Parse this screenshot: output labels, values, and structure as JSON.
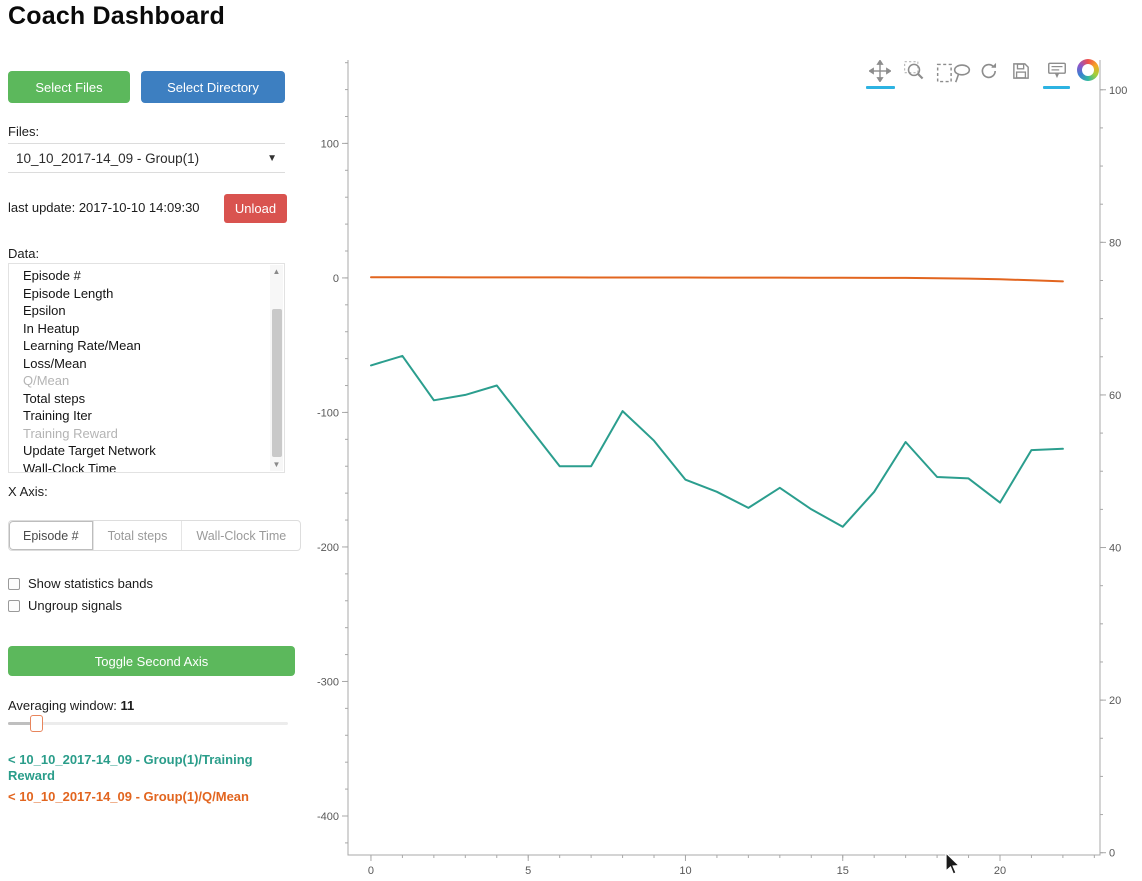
{
  "title": "Coach Dashboard",
  "sidebar": {
    "select_files_label": "Select Files",
    "select_directory_label": "Select Directory",
    "files_label": "Files:",
    "files_selected": "10_10_2017-14_09 - Group(1)",
    "last_update": "last update: 2017-10-10 14:09:30",
    "unload_label": "Unload",
    "data_label": "Data:",
    "data_items": [
      {
        "label": "Episode #",
        "dimmed": false
      },
      {
        "label": "Episode Length",
        "dimmed": false
      },
      {
        "label": "Epsilon",
        "dimmed": false
      },
      {
        "label": "In Heatup",
        "dimmed": false
      },
      {
        "label": "Learning Rate/Mean",
        "dimmed": false
      },
      {
        "label": "Loss/Mean",
        "dimmed": false
      },
      {
        "label": "Q/Mean",
        "dimmed": true
      },
      {
        "label": "Total steps",
        "dimmed": false
      },
      {
        "label": "Training Iter",
        "dimmed": false
      },
      {
        "label": "Training Reward",
        "dimmed": true
      },
      {
        "label": "Update Target Network",
        "dimmed": false
      },
      {
        "label": "Wall-Clock Time",
        "dimmed": false
      }
    ],
    "x_axis_label": "X Axis:",
    "x_axis_options": [
      "Episode #",
      "Total steps",
      "Wall-Clock Time"
    ],
    "x_axis_selected": "Episode #",
    "show_bands_label": "Show statistics bands",
    "ungroup_label": "Ungroup signals",
    "toggle_second_axis_label": "Toggle Second Axis",
    "averaging_label": "Averaging window:",
    "averaging_value": "11",
    "legend": [
      {
        "label": "< 10_10_2017-14_09 - Group(1)/Training Reward",
        "color": "#2a9d8a"
      },
      {
        "label": "< 10_10_2017-14_09 - Group(1)/Q/Mean",
        "color": "#e2651f"
      }
    ]
  },
  "toolbar": {
    "tools": [
      "pan",
      "box-zoom",
      "box-select",
      "lasso-select",
      "reset",
      "save",
      "hover",
      "bokeh-logo"
    ],
    "active_tools": [
      "pan",
      "hover"
    ],
    "active_color": "#2db3e2"
  },
  "chart_data": {
    "type": "line",
    "title": "",
    "grid": false,
    "legend_position": "sidebar",
    "x_ticks": [
      0,
      5,
      10,
      15,
      20
    ],
    "x_range": [
      -0.73,
      23.18
    ],
    "x_minor_step": 1,
    "left_axis": {
      "ticks": [
        100,
        0,
        -100,
        -200,
        -300,
        -400
      ],
      "range": [
        -429,
        162
      ],
      "minor_step": 20
    },
    "right_axis": {
      "ticks": [
        100,
        80,
        60,
        40,
        20,
        0
      ],
      "range": [
        -0.3,
        103.9
      ],
      "minor_step": 5
    },
    "series": [
      {
        "name": "10_10_2017-14_09 - Group(1)/Training Reward",
        "slug": "training-reward",
        "color": "#2b9e8e",
        "axis": "left",
        "x": [
          0,
          1,
          2,
          3,
          4,
          5,
          6,
          7,
          8,
          9,
          10,
          11,
          12,
          13,
          14,
          15,
          16,
          17,
          18,
          19,
          20,
          21,
          22
        ],
        "y": [
          -65,
          -58,
          -91,
          -87,
          -80,
          -110,
          -140,
          -140,
          -99,
          -121,
          -150,
          -159,
          -171,
          -156,
          -172,
          -185,
          -159,
          -122,
          -148,
          -149,
          -167,
          -128,
          -127
        ]
      },
      {
        "name": "10_10_2017-14_09 - Group(1)/Q/Mean",
        "slug": "q-mean",
        "color": "#e2651f",
        "axis": "left",
        "x": [
          0,
          1,
          2,
          3,
          4,
          5,
          6,
          7,
          8,
          9,
          10,
          11,
          12,
          13,
          14,
          15,
          16,
          17,
          18,
          19,
          20,
          21,
          22
        ],
        "y": [
          0.5,
          0.5,
          0.5,
          0.4,
          0.4,
          0.4,
          0.4,
          0.3,
          0.3,
          0.3,
          0.3,
          0.2,
          0.2,
          0.2,
          0.1,
          0.1,
          0.0,
          0.0,
          -0.2,
          -0.5,
          -1.0,
          -1.8,
          -2.6
        ]
      }
    ]
  }
}
